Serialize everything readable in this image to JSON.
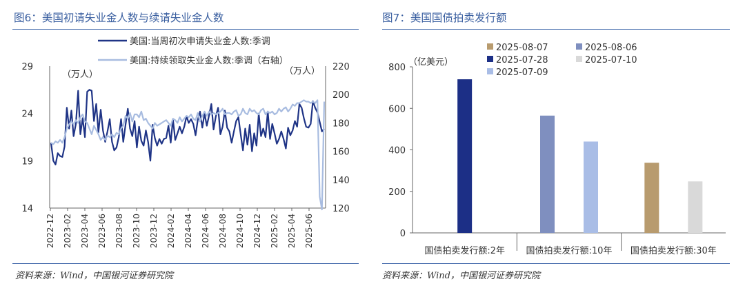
{
  "fig6": {
    "title": "图6：美国初请失业金人数与续请失业金人数",
    "source": "资料来源：Wind，中国银河证券研究院",
    "chart_data": {
      "type": "line",
      "series": [
        {
          "name": "美国:当周初次申请失业金人数:季调",
          "axis": "left",
          "color": "#1f3486",
          "values": [
            20.9,
            19.0,
            18.6,
            19.8,
            19.5,
            19.4,
            20.5,
            24.6,
            22.4,
            24.3,
            21.6,
            22.9,
            26.4,
            21.8,
            23.5,
            21.5,
            26.3,
            26.5,
            26.4,
            23.2,
            25.0,
            22.0,
            24.4,
            22.2,
            21.0,
            22.1,
            23.4,
            21.0,
            20.1,
            20.4,
            21.5,
            23.4,
            21.0,
            22.8,
            24.5,
            22.4,
            21.6,
            23.2,
            20.4,
            22.6,
            21.1,
            20.6,
            22.2,
            21.0,
            19.0,
            22.8,
            21.4,
            20.6,
            21.3,
            20.8,
            21.3,
            21.4,
            22.7,
            20.9,
            23.4,
            21.2,
            21.9,
            22.6,
            21.9,
            22.6,
            23.7,
            23.0,
            23.4,
            22.9,
            21.7,
            23.3,
            24.2,
            22.5,
            24.0,
            22.7,
            23.8,
            25.0,
            22.3,
            23.7,
            24.6,
            21.8,
            22.6,
            24.3,
            22.5,
            22.1,
            20.9,
            22.1,
            23.2,
            23.6,
            21.8,
            20.1,
            22.4,
            20.7,
            22.8,
            20.0,
            21.9,
            20.6,
            24.0,
            21.6,
            22.4,
            21.5,
            24.2,
            21.3,
            22.9,
            21.9,
            20.8,
            21.3,
            22.1,
            21.3,
            20.3,
            22.5,
            21.7,
            22.2,
            23.2,
            22.6,
            25.0,
            24.6,
            23.5,
            22.6,
            22.5,
            22.9,
            25.3,
            24.6,
            24.1,
            23.1,
            22.1,
            22.4
          ]
        },
        {
          "name": "美国:持续领取失业金人数:季调（右轴）",
          "axis": "right",
          "color": "#a8bce0",
          "values": [
            166,
            165,
            167,
            166,
            168,
            166,
            170,
            176,
            179,
            181,
            179,
            182,
            180,
            184,
            186,
            181,
            180,
            176,
            172,
            178,
            175,
            172,
            168,
            170,
            168,
            171,
            170,
            172,
            170,
            173,
            172,
            176,
            178,
            185,
            183,
            187,
            181,
            186,
            186,
            184,
            188,
            182,
            183,
            180,
            178,
            176,
            180,
            178,
            179,
            180,
            181,
            182,
            180,
            178,
            183,
            182,
            180,
            184,
            181,
            183,
            185,
            184,
            186,
            183,
            182,
            187,
            181,
            185,
            188,
            185,
            188,
            186,
            187,
            186,
            187,
            188,
            190,
            186,
            187,
            187,
            186,
            188,
            189,
            185,
            186,
            190,
            187,
            186,
            190,
            188,
            189,
            187,
            186,
            189,
            190,
            186,
            188,
            187,
            188,
            186,
            187,
            190,
            188,
            190,
            191,
            188,
            190,
            193,
            192,
            194,
            194,
            195,
            196,
            195,
            195,
            194,
            195,
            194,
            196,
            128,
            119,
            195
          ]
        }
      ],
      "x_tick_labels": [
        "2022-12",
        "2023-02",
        "2023-04",
        "2023-06",
        "2023-08",
        "2023-10",
        "2023-12",
        "2024-02",
        "2024-04",
        "2024-06",
        "2024-08",
        "2024-10",
        "2024-12",
        "2025-02",
        "2025-04",
        "2025-06"
      ],
      "y_left": {
        "unit": "（万人）",
        "ylim": [
          14,
          29
        ],
        "ticks": [
          "14",
          "19",
          "24",
          "29"
        ]
      },
      "y_right": {
        "unit": "（万人）",
        "ylim": [
          120,
          220
        ],
        "ticks": [
          "120",
          "140",
          "160",
          "180",
          "200",
          "220"
        ]
      },
      "legend": "top"
    }
  },
  "fig7": {
    "title": "图7：美国国债拍卖发行额",
    "source": "资料来源：Wind，中国银河证券研究院",
    "chart_data": {
      "type": "bar",
      "unit": "（亿美元）",
      "ylim": [
        0,
        800
      ],
      "y_ticks": [
        "0",
        "200",
        "400",
        "600",
        "800"
      ],
      "categories": [
        "国债拍卖发行额:2年",
        "国债拍卖发行额:10年",
        "国债拍卖发行额:30年"
      ],
      "series": [
        {
          "name": "2025-07-28",
          "color": "#1c2f86",
          "values": [
            740,
            null,
            null
          ]
        },
        {
          "name": "2025-08-06",
          "color": "#7f8fbf",
          "values": [
            null,
            565,
            null
          ]
        },
        {
          "name": "2025-07-09",
          "color": "#a9bde6",
          "values": [
            null,
            440,
            null
          ]
        },
        {
          "name": "2025-08-07",
          "color": "#b89b6e",
          "values": [
            null,
            null,
            338
          ]
        },
        {
          "name": "2025-07-10",
          "color": "#d9d9d9",
          "values": [
            null,
            null,
            248
          ]
        }
      ],
      "legend_order": [
        "2025-08-07",
        "2025-08-06",
        "2025-07-28",
        "2025-07-10",
        "2025-07-09"
      ]
    }
  }
}
